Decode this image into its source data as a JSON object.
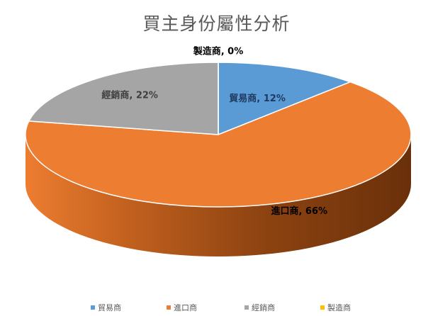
{
  "chart_data": {
    "type": "pie",
    "title": "買主身份屬性分析",
    "categories": [
      "貿易商",
      "進口商",
      "經銷商",
      "製造商"
    ],
    "values": [
      12,
      66,
      22,
      0
    ],
    "value_unit": "%",
    "colors": [
      "#5B9BD5",
      "#ED7D31",
      "#A5A5A5",
      "#FFC000"
    ],
    "data_labels": [
      "貿易商, 12%",
      "進口商, 66%",
      "經銷商, 22%",
      "製造商, 0%"
    ],
    "legend_position": "bottom",
    "three_d": true
  }
}
